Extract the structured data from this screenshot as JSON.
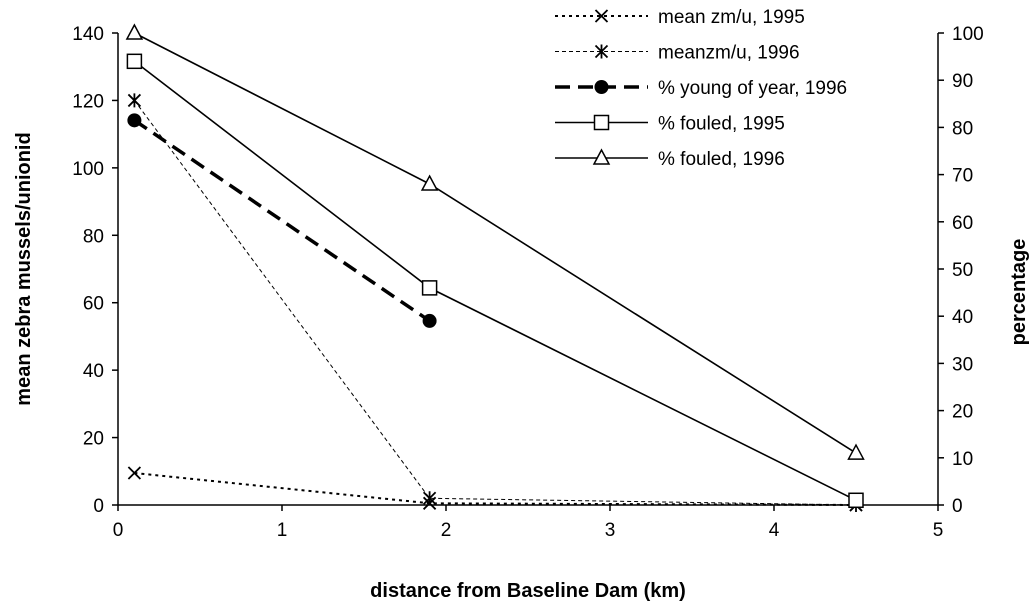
{
  "chart_data": {
    "type": "line",
    "xlabel": "distance from Baseline Dam (km)",
    "ylabel_left": "mean zebra mussels/unionid",
    "ylabel_right": "percentage",
    "xlim": [
      0,
      5
    ],
    "ylim_left": [
      0,
      140
    ],
    "ylim_right": [
      0,
      100
    ],
    "x_ticks": [
      "0",
      "1",
      "2",
      "3",
      "4",
      "5"
    ],
    "y_left_ticks": [
      "0",
      "20",
      "40",
      "60",
      "80",
      "100",
      "120",
      "140"
    ],
    "y_right_ticks": [
      "0",
      "10",
      "20",
      "30",
      "40",
      "50",
      "60",
      "70",
      "80",
      "90",
      "100"
    ],
    "grid": false,
    "legend_position": "top-right",
    "series": [
      {
        "name": "mean zm/u, 1995",
        "axis": "left",
        "marker": "x",
        "line": "dotted",
        "x": [
          0.1,
          1.9,
          4.5
        ],
        "y": [
          9.5,
          0.5,
          0
        ]
      },
      {
        "name": "meanzm/u, 1996",
        "axis": "left",
        "marker": "asterisk",
        "line": "fine-dashed",
        "x": [
          0.1,
          1.9,
          4.5
        ],
        "y": [
          120,
          2,
          0
        ]
      },
      {
        "name": "% young of year, 1996",
        "axis": "right",
        "marker": "filled-circle",
        "line": "heavy-dashed",
        "x": [
          0.1,
          1.9
        ],
        "y": [
          81.5,
          39
        ]
      },
      {
        "name": "% fouled, 1995",
        "axis": "right",
        "marker": "open-square",
        "line": "solid",
        "x": [
          0.1,
          1.9,
          4.5
        ],
        "y": [
          94,
          46,
          1
        ]
      },
      {
        "name": "% fouled, 1996",
        "axis": "right",
        "marker": "open-triangle",
        "line": "solid",
        "x": [
          0.1,
          1.9,
          4.5
        ],
        "y": [
          100,
          68,
          11
        ]
      }
    ]
  }
}
